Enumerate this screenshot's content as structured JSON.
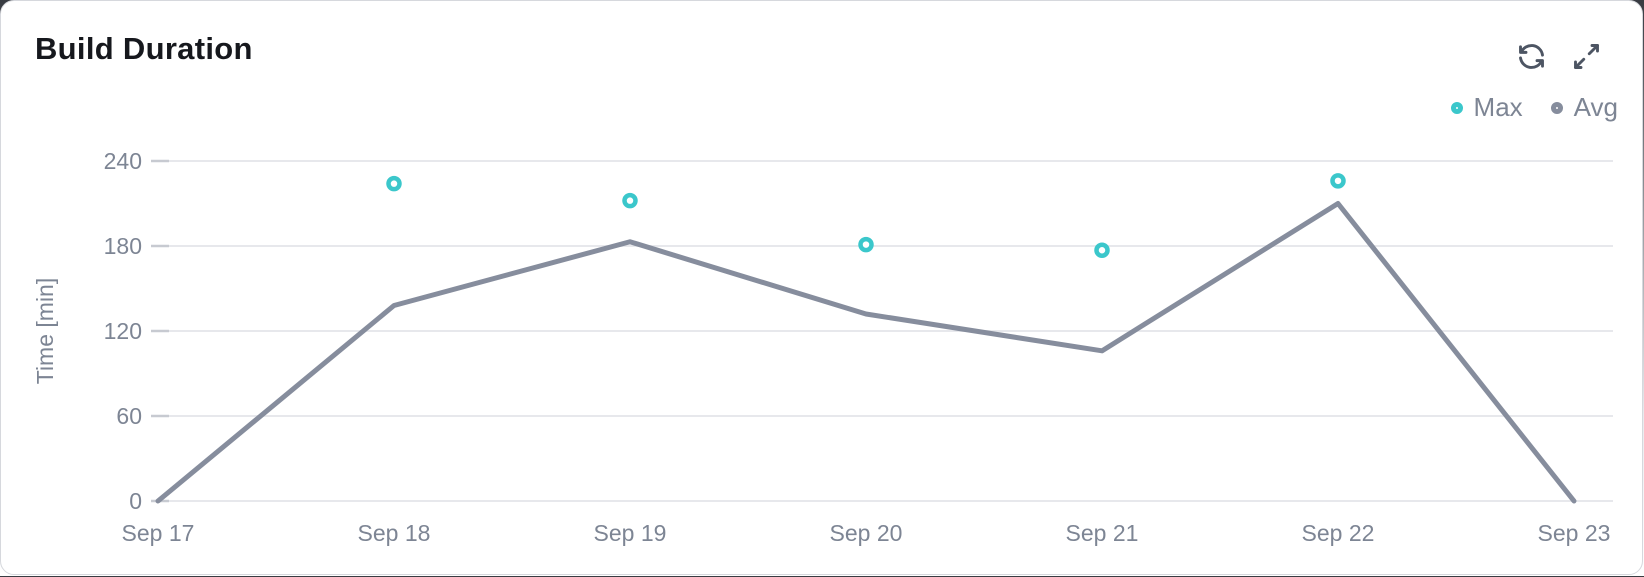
{
  "header": {
    "title": "Build Duration"
  },
  "icons": {
    "refresh": "circular-sync-arrows",
    "expand": "diagonal-resize-arrows"
  },
  "chart_data": {
    "type": "line",
    "title": "Build Duration",
    "x": [
      "Sep 17",
      "Sep 18",
      "Sep 19",
      "Sep 20",
      "Sep 21",
      "Sep 22",
      "Sep 23"
    ],
    "series": [
      {
        "name": "Max",
        "type": "scatter",
        "marker": "ring",
        "color": "#3bc7cb",
        "values": [
          null,
          224,
          212,
          181,
          177,
          226,
          null
        ]
      },
      {
        "name": "Avg",
        "type": "line",
        "color": "#868d9d",
        "values": [
          0,
          138,
          183,
          132,
          106,
          210,
          0
        ]
      }
    ],
    "xlabel": "",
    "ylabel": "Time [min]",
    "ylim": [
      0,
      240
    ],
    "yticks": [
      0,
      60,
      120,
      180,
      240
    ],
    "grid": true,
    "legend_position": "top-right"
  },
  "colors": {
    "max": "#3bc7cb",
    "avg": "#868d9d",
    "grid": "#e7e8ec",
    "tick": "#c7cad1",
    "axis_text": "#7d8594",
    "title_text": "#16181d",
    "icon": "#4d5563",
    "card_border": "#d6d8dd",
    "card_bg": "#ffffff"
  }
}
